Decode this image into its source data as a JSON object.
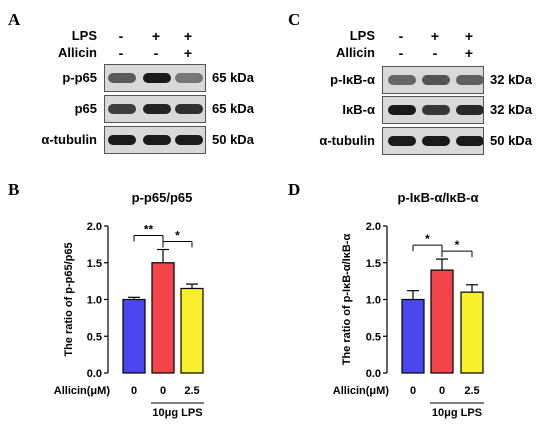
{
  "panel_A": {
    "letter": "A",
    "treatments": [
      {
        "label": "LPS",
        "signs": [
          "-",
          "+",
          "+"
        ]
      },
      {
        "label": "Allicin",
        "signs": [
          "-",
          "-",
          "+"
        ]
      }
    ],
    "blots": [
      {
        "label": "p-p65",
        "size": "65 kDa",
        "intensity": [
          0.55,
          1.0,
          0.35
        ]
      },
      {
        "label": "p65",
        "size": "65 kDa",
        "intensity": [
          0.75,
          0.95,
          0.85
        ]
      },
      {
        "label": "α-tubulin",
        "size": "50 kDa",
        "intensity": [
          1.0,
          1.0,
          1.0
        ]
      }
    ]
  },
  "panel_C": {
    "letter": "C",
    "treatments": [
      {
        "label": "LPS",
        "signs": [
          "-",
          "+",
          "+"
        ]
      },
      {
        "label": "Allicin",
        "signs": [
          "-",
          "-",
          "+"
        ]
      }
    ],
    "blots": [
      {
        "label": "p-IκB-α",
        "size": "32 kDa",
        "intensity": [
          0.45,
          0.6,
          0.5
        ]
      },
      {
        "label": "IκB-α",
        "size": "32 kDa",
        "intensity": [
          1.0,
          0.8,
          0.9
        ]
      },
      {
        "label": "α-tubulin",
        "size": "50 kDa",
        "intensity": [
          1.0,
          1.0,
          1.0
        ]
      }
    ]
  },
  "chart_data": [
    {
      "panel": "B",
      "type": "bar",
      "title": "p-p65/p65",
      "ylabel": "The ratio of p-p65/p65",
      "ylim": [
        0,
        2.0
      ],
      "yticks": [
        "0.0",
        "0.5",
        "1.0",
        "1.5",
        "2.0"
      ],
      "xlabel_prefix": "Allicin(μM)",
      "categories": [
        "0",
        "0",
        "2.5"
      ],
      "values": [
        1.0,
        1.5,
        1.15
      ],
      "errors": [
        0.03,
        0.18,
        0.06
      ],
      "colors": [
        "#4a46f0",
        "#f2444a",
        "#f7f02a"
      ],
      "group_label": "10μg LPS",
      "significance": [
        {
          "from": 0,
          "to": 1,
          "text": "**"
        },
        {
          "from": 1,
          "to": 2,
          "text": "*"
        }
      ]
    },
    {
      "panel": "D",
      "type": "bar",
      "title": "p-IκB-α/IκB-α",
      "ylabel": "The ratio of p-IκB-α/IκB-α",
      "ylim": [
        0,
        2.0
      ],
      "yticks": [
        "0.0",
        "0.5",
        "1.0",
        "1.5",
        "2.0"
      ],
      "xlabel_prefix": "Allicin(μM)",
      "categories": [
        "0",
        "0",
        "2.5"
      ],
      "values": [
        1.0,
        1.4,
        1.1
      ],
      "errors": [
        0.12,
        0.15,
        0.1
      ],
      "colors": [
        "#4a46f0",
        "#f2444a",
        "#f7f02a"
      ],
      "group_label": "10μg LPS",
      "significance": [
        {
          "from": 0,
          "to": 1,
          "text": "*"
        },
        {
          "from": 1,
          "to": 2,
          "text": "*"
        }
      ]
    }
  ]
}
